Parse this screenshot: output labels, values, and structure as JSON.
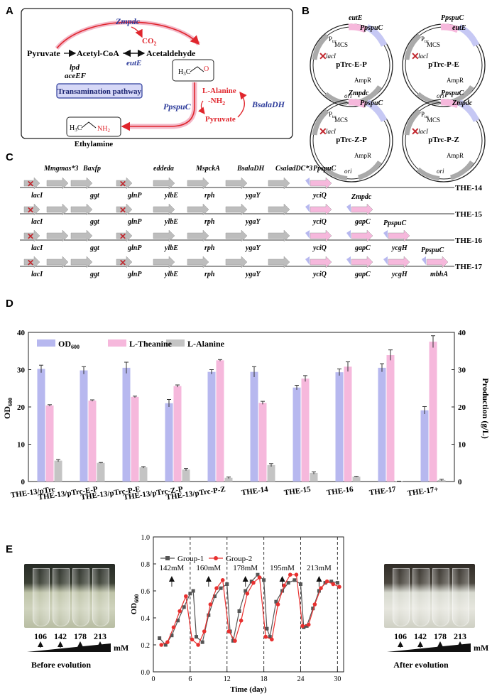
{
  "panelA": {
    "letter": "A",
    "zmpdc": "Zmpdc",
    "co2": "CO",
    "co2_sub": "2",
    "pyruvate": "Pyruvate",
    "acetylcoa": "Acetyl-CoA",
    "acetaldehyde": "Acetaldehyde",
    "lpd": "lpd",
    "aceEF": "aceEF",
    "eutE": "eutE",
    "transamination": "Transamination pathway",
    "lalanine": "L-Alanine",
    "nh2": "-NH",
    "nh2_sub": "2",
    "pyruvate2": "Pyruvate",
    "ppspuc": "PpspuC",
    "bsaladh": "BsalaDH",
    "ethylamine": "Ethylamine"
  },
  "panelB": {
    "letter": "B",
    "plasmids": [
      {
        "name": "pTrc-E-P",
        "g1": "eutE",
        "g2": "PpspuC"
      },
      {
        "name": "pTrc-P-E",
        "g1": "PpspuC",
        "g2": "eutE"
      },
      {
        "name": "pTrc-Z-P",
        "g1": "Zmpdc",
        "g2": "PpspuC"
      },
      {
        "name": "pTrc-P-Z",
        "g1": "PpspuC",
        "g2": "Zmpdc"
      }
    ],
    "lacI": "lacI",
    "ptrc": "P",
    "ptrc_sub": "trc",
    "mcs": "MCS",
    "ampr": "AmpR",
    "ori": "ori"
  },
  "panelC": {
    "letter": "C",
    "top_genes": [
      "Mmgmas*3",
      "Baxfp",
      "eddeda",
      "MspckA",
      "BsalaDH",
      "CsaladDC*3",
      "PpspuC"
    ],
    "loci": [
      "lacI",
      "ggt",
      "glnP",
      "ylbE",
      "rph",
      "ygaY",
      "yciQ",
      "gapC",
      "ycgH",
      "mbhA"
    ],
    "strains": [
      "THE-14",
      "THE-15",
      "THE-16",
      "THE-17"
    ],
    "extra_labels": {
      "zmpdc": "Zmpdc",
      "ppspuc16": "PpspuC",
      "ppspuc17": "PpspuC"
    }
  },
  "panelD": {
    "letter": "D",
    "legend": [
      "OD",
      "L-Theanine",
      "L-Alanine"
    ],
    "legend_od_sub": "600"
  },
  "panelE": {
    "letter": "E",
    "before": {
      "concs": [
        "106",
        "142",
        "178",
        "213"
      ],
      "unit": "mM",
      "caption": "Before evolution"
    },
    "after": {
      "concs": [
        "106",
        "142",
        "178",
        "213"
      ],
      "unit": "mM",
      "caption": "After evolution"
    },
    "conc_marks": [
      "142mM",
      "160mM",
      "178mM",
      "195mM",
      "213mM"
    ]
  },
  "chart_data": [
    {
      "type": "bar",
      "ylabel": "OD600",
      "y2label": "Production (g/L)",
      "ylim": [
        0,
        40
      ],
      "y2lim": [
        0,
        40
      ],
      "yticks": [
        0,
        10,
        20,
        30,
        40
      ],
      "categories": [
        "THE-13/pTrc",
        "THE-13/pTrc-E-P",
        "THE-13/pTrc-P-E",
        "THE-13/pTrc-Z-P",
        "THE-13/pTrc-P-Z",
        "THE-14",
        "THE-15",
        "THE-16",
        "THE-17",
        "THE-17+"
      ],
      "series": [
        {
          "name": "OD600",
          "color": "#b7b8ef",
          "values": [
            30.2,
            29.8,
            30.5,
            21.0,
            29.4,
            29.4,
            25.2,
            29.3,
            30.5,
            19.1
          ],
          "errors": [
            1.0,
            1.0,
            1.5,
            1.0,
            0.6,
            1.4,
            0.6,
            0.9,
            1.1,
            1.0
          ]
        },
        {
          "name": "L-Theanine",
          "color": "#f6b8dc",
          "values": [
            20.4,
            21.7,
            22.7,
            25.6,
            32.5,
            21.1,
            27.6,
            30.8,
            33.9,
            37.5
          ],
          "errors": [
            0.2,
            0.2,
            0.2,
            0.3,
            0.2,
            0.4,
            0.8,
            1.3,
            1.4,
            1.6
          ]
        },
        {
          "name": "L-Alanine",
          "color": "#c4c4c4",
          "values": [
            5.6,
            5.0,
            3.8,
            3.2,
            1.0,
            4.4,
            2.3,
            1.3,
            0.1,
            0.4
          ],
          "errors": [
            0.3,
            0.1,
            0.2,
            0.3,
            0.2,
            0.4,
            0.3,
            0.1,
            0.0,
            0.2
          ]
        }
      ]
    },
    {
      "type": "line",
      "xlabel": "Time (day)",
      "ylabel": "OD600",
      "xlim": [
        0,
        31
      ],
      "ylim": [
        0,
        1.0
      ],
      "xticks": [
        0,
        6,
        12,
        18,
        24,
        30
      ],
      "yticks": [
        0.0,
        0.2,
        0.4,
        0.6,
        0.8,
        1.0
      ],
      "dashed_x": [
        6,
        12,
        18,
        24,
        30
      ],
      "series": [
        {
          "name": "Group-1",
          "color": "#555555",
          "marker": "square",
          "x": [
            1,
            2,
            3,
            4,
            5,
            6,
            6.5,
            7,
            8,
            9,
            10,
            11,
            12,
            12.5,
            13,
            14,
            15,
            16,
            17,
            18,
            18.5,
            19,
            20,
            21,
            22,
            23,
            24,
            24.5,
            25,
            26,
            27,
            28,
            29,
            30
          ],
          "y": [
            0.25,
            0.2,
            0.27,
            0.38,
            0.48,
            0.58,
            0.6,
            0.26,
            0.22,
            0.42,
            0.56,
            0.62,
            0.65,
            0.3,
            0.23,
            0.45,
            0.6,
            0.67,
            0.72,
            0.68,
            0.32,
            0.26,
            0.52,
            0.6,
            0.66,
            0.68,
            0.65,
            0.33,
            0.34,
            0.47,
            0.6,
            0.66,
            0.67,
            0.66
          ]
        },
        {
          "name": "Group-2",
          "color": "#e8302f",
          "marker": "circle",
          "x": [
            1.3,
            2.3,
            3.3,
            4.3,
            5.3,
            6.3,
            7.3,
            8.3,
            9.3,
            10.3,
            11.3,
            12.3,
            13.3,
            14.3,
            15.3,
            16.3,
            17.3,
            18.3,
            19.3,
            20.3,
            21.3,
            22.3,
            23.3,
            24.3,
            25.3,
            26.3,
            27.3,
            28.3,
            29.3,
            30.3
          ],
          "y": [
            0.2,
            0.22,
            0.33,
            0.45,
            0.56,
            0.24,
            0.2,
            0.3,
            0.5,
            0.62,
            0.68,
            0.3,
            0.23,
            0.38,
            0.58,
            0.66,
            0.7,
            0.26,
            0.24,
            0.5,
            0.64,
            0.72,
            0.72,
            0.34,
            0.35,
            0.5,
            0.62,
            0.67,
            0.65,
            0.63
          ]
        }
      ]
    }
  ]
}
